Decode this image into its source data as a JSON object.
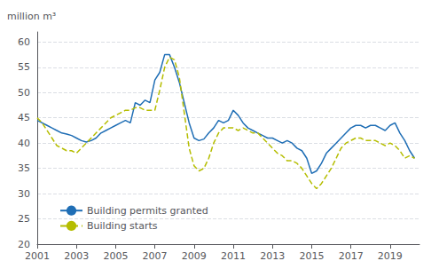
{
  "chart_data": {
    "type": "line",
    "ylabel": "million m³",
    "xlim": [
      2001.0,
      2020.5
    ],
    "xticks": [
      2001,
      2003,
      2005,
      2007,
      2009,
      2011,
      2013,
      2015,
      2017,
      2019
    ],
    "ylim": [
      20,
      62
    ],
    "yticks": [
      20,
      25,
      30,
      35,
      40,
      45,
      50,
      55,
      60
    ],
    "grid": true,
    "legend": "lower left",
    "x": [
      2001.0,
      2001.25,
      2001.5,
      2001.75,
      2002.0,
      2002.25,
      2002.5,
      2002.75,
      2003.0,
      2003.25,
      2003.5,
      2003.75,
      2004.0,
      2004.25,
      2004.5,
      2004.75,
      2005.0,
      2005.25,
      2005.5,
      2005.75,
      2006.0,
      2006.25,
      2006.5,
      2006.75,
      2007.0,
      2007.25,
      2007.5,
      2007.75,
      2008.0,
      2008.25,
      2008.5,
      2008.75,
      2009.0,
      2009.25,
      2009.5,
      2009.75,
      2010.0,
      2010.25,
      2010.5,
      2010.75,
      2011.0,
      2011.25,
      2011.5,
      2011.75,
      2012.0,
      2012.25,
      2012.5,
      2012.75,
      2013.0,
      2013.25,
      2013.5,
      2013.75,
      2014.0,
      2014.25,
      2014.5,
      2014.75,
      2015.0,
      2015.25,
      2015.5,
      2015.75,
      2016.0,
      2016.25,
      2016.5,
      2016.75,
      2017.0,
      2017.25,
      2017.5,
      2017.75,
      2018.0,
      2018.25,
      2018.5,
      2018.75,
      2019.0,
      2019.25,
      2019.5,
      2019.75,
      2020.0,
      2020.25
    ],
    "series": [
      {
        "name": "Building permits granted",
        "color": "#1f6eb5",
        "line_style": "solid",
        "values": [
          44.5,
          44.0,
          43.5,
          43.0,
          42.5,
          42.0,
          41.8,
          41.5,
          41.0,
          40.5,
          40.2,
          40.5,
          41.0,
          42.0,
          42.5,
          43.0,
          43.5,
          44.0,
          44.5,
          44.0,
          48.0,
          47.5,
          48.5,
          48.0,
          52.5,
          54.0,
          57.5,
          57.5,
          55.0,
          52.0,
          48.0,
          44.0,
          41.0,
          40.5,
          40.8,
          42.0,
          43.0,
          44.5,
          44.0,
          44.5,
          46.5,
          45.5,
          44.0,
          43.0,
          42.5,
          42.0,
          41.5,
          41.0,
          41.0,
          40.5,
          40.0,
          40.5,
          40.0,
          39.0,
          38.5,
          37.0,
          34.0,
          34.5,
          36.0,
          38.0,
          39.0,
          40.0,
          41.0,
          42.0,
          43.0,
          43.5,
          43.5,
          43.0,
          43.5,
          43.5,
          43.0,
          42.5,
          43.5,
          44.0,
          42.0,
          40.5,
          38.5,
          37.0
        ]
      },
      {
        "name": "Building starts",
        "color": "#b5bd00",
        "line_style": "dashed",
        "values": [
          45.0,
          44.0,
          42.5,
          41.0,
          39.5,
          39.0,
          38.5,
          38.5,
          38.0,
          39.0,
          40.0,
          41.0,
          42.0,
          43.0,
          44.0,
          45.0,
          45.5,
          46.0,
          46.5,
          46.5,
          47.0,
          47.0,
          46.5,
          46.5,
          46.5,
          50.5,
          55.0,
          57.0,
          56.5,
          53.0,
          46.0,
          39.0,
          35.5,
          34.5,
          35.0,
          37.0,
          40.0,
          42.0,
          43.0,
          43.0,
          43.0,
          42.5,
          43.0,
          42.5,
          42.0,
          42.0,
          41.0,
          40.0,
          39.0,
          38.0,
          37.5,
          36.5,
          36.5,
          36.0,
          35.0,
          33.5,
          32.0,
          31.0,
          32.0,
          33.5,
          35.0,
          37.0,
          39.0,
          40.0,
          40.5,
          41.0,
          41.0,
          40.5,
          40.5,
          40.5,
          40.0,
          39.5,
          40.0,
          39.5,
          38.5,
          37.0,
          37.5,
          37.0
        ]
      }
    ]
  }
}
